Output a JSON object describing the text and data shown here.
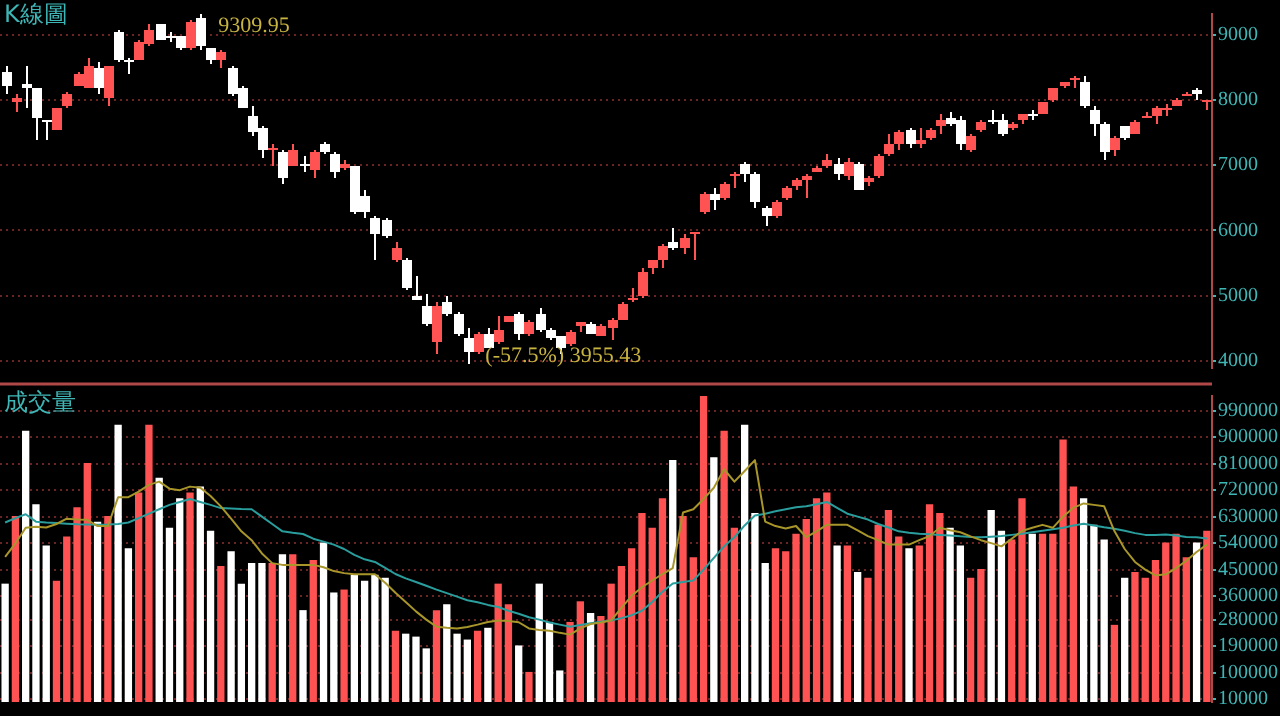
{
  "chart_data": [
    {
      "type": "candlestick",
      "title": "K線圖",
      "categories": [
        null,
        null,
        null,
        null,
        null,
        null,
        null,
        null,
        null,
        null,
        null,
        null,
        null,
        null,
        null,
        null,
        null,
        null,
        null,
        null,
        null,
        null,
        null,
        null,
        null,
        null,
        null,
        null,
        null,
        null,
        null,
        null,
        null,
        null,
        null,
        null,
        null,
        null,
        null,
        null,
        null,
        null,
        null,
        null,
        null,
        null,
        null,
        null,
        null,
        null,
        null,
        null,
        null,
        null,
        null,
        null,
        null,
        null,
        null,
        null,
        null,
        null,
        null,
        null,
        null,
        null,
        null,
        null,
        null,
        null,
        null,
        null,
        null,
        null,
        null,
        null,
        null,
        null,
        null,
        null,
        null,
        null,
        null,
        null,
        null,
        null,
        null,
        null,
        null,
        null,
        null,
        null,
        null,
        null,
        null,
        null,
        null,
        null,
        null,
        null,
        null,
        null,
        null,
        null,
        null,
        null,
        null,
        null,
        null,
        null,
        null,
        null,
        null,
        null,
        null,
        null,
        null,
        null
      ],
      "ohlc": [
        [
          8430,
          8525,
          8097,
          8202
        ],
        [
          7955,
          8097,
          7812,
          8021
        ],
        [
          8249,
          8525,
          7888,
          8173
        ],
        [
          8173,
          8192,
          7384,
          7727
        ],
        [
          7679,
          7698,
          7384,
          7660
        ],
        [
          7556,
          7888,
          7527,
          7869
        ],
        [
          7907,
          8126,
          7888,
          8097
        ],
        [
          8221,
          8439,
          8202,
          8411
        ],
        [
          8192,
          8648,
          8173,
          8515
        ],
        [
          8477,
          8572,
          8107,
          8173
        ],
        [
          8031,
          8534,
          7907,
          8515
        ],
        [
          9047,
          9066,
          8572,
          8601
        ],
        [
          8610,
          8648,
          8411,
          8591
        ],
        [
          8629,
          8933,
          8610,
          8905
        ],
        [
          8867,
          9161,
          8838,
          9076
        ],
        [
          9152,
          9171,
          8914,
          8933
        ],
        [
          8971,
          9047,
          8886,
          8952
        ],
        [
          8971,
          8990,
          8772,
          8791
        ],
        [
          8810,
          9218,
          8772,
          9199
        ],
        [
          9256,
          9309.95,
          8780,
          8819
        ],
        [
          8791,
          8810,
          8553,
          8610
        ],
        [
          8629,
          8762,
          8506,
          8743
        ],
        [
          8506,
          8525,
          8059,
          8097
        ],
        [
          8192,
          8221,
          7869,
          7888
        ],
        [
          7765,
          7907,
          7461,
          7508
        ],
        [
          7584,
          7603,
          7100,
          7223
        ],
        [
          7223,
          7318,
          6976,
          7261
        ],
        [
          7204,
          7242,
          6701,
          6796
        ],
        [
          6986,
          7337,
          6976,
          7223
        ],
        [
          7024,
          7147,
          6890,
          6995
        ],
        [
          6938,
          7223,
          6796,
          7204
        ],
        [
          7318,
          7365,
          7185,
          7204
        ],
        [
          7175,
          7204,
          6815,
          6890
        ],
        [
          6957,
          7080,
          6938,
          7033
        ],
        [
          6976,
          6995,
          6254,
          6292
        ],
        [
          6539,
          6634,
          6178,
          6292
        ],
        [
          6178,
          6207,
          5532,
          5960
        ],
        [
          6150,
          6178,
          5893,
          5912
        ],
        [
          5532,
          5817,
          5513,
          5722
        ],
        [
          5551,
          5570,
          5095,
          5114
        ],
        [
          4991,
          5304,
          4924,
          4943
        ],
        [
          4829,
          5038,
          4544,
          4563
        ],
        [
          4297,
          4895,
          4107,
          4848
        ],
        [
          4895,
          4991,
          4687,
          4706
        ],
        [
          4706,
          4753,
          4392,
          4421
        ],
        [
          4354,
          4516,
          3955.43,
          4136
        ],
        [
          4136,
          4449,
          4107,
          4421
        ],
        [
          4421,
          4516,
          4183,
          4202
        ],
        [
          4278,
          4677,
          4259,
          4468
        ],
        [
          4601,
          4696,
          4582,
          4677
        ],
        [
          4725,
          4744,
          4326,
          4421
        ],
        [
          4411,
          4611,
          4392,
          4582
        ],
        [
          4706,
          4801,
          4449,
          4468
        ],
        [
          4468,
          4516,
          4326,
          4354
        ],
        [
          4373,
          4392,
          4117,
          4212
        ],
        [
          4259,
          4468,
          4240,
          4449
        ],
        [
          4544,
          4601,
          4449,
          4582
        ],
        [
          4572,
          4591,
          4402,
          4421
        ],
        [
          4392,
          4563,
          4373,
          4534
        ],
        [
          4506,
          4658,
          4326,
          4639
        ],
        [
          4629,
          4905,
          4611,
          4886
        ],
        [
          4924,
          5114,
          4905,
          4962
        ],
        [
          4991,
          5418,
          4972,
          5370
        ],
        [
          5418,
          5560,
          5323,
          5532
        ],
        [
          5560,
          5779,
          5418,
          5750
        ],
        [
          5817,
          6036,
          5703,
          5722
        ],
        [
          5741,
          5940,
          5636,
          5874
        ],
        [
          5931,
          5988,
          5560,
          5969
        ],
        [
          6273,
          6586,
          6254,
          6558
        ],
        [
          6558,
          6653,
          6321,
          6482
        ],
        [
          6492,
          6748,
          6463,
          6710
        ],
        [
          6843,
          6900,
          6653,
          6881
        ],
        [
          7033,
          7062,
          6729,
          6862
        ],
        [
          6881,
          6910,
          6340,
          6444
        ],
        [
          6349,
          6387,
          6083,
          6226
        ],
        [
          6226,
          6463,
          6178,
          6444
        ],
        [
          6501,
          6672,
          6482,
          6653
        ],
        [
          6672,
          6796,
          6606,
          6767
        ],
        [
          6786,
          6862,
          6492,
          6843
        ],
        [
          6910,
          6986,
          6890,
          6957
        ],
        [
          6986,
          7166,
          6966,
          7071
        ],
        [
          7033,
          7100,
          6767,
          6862
        ],
        [
          6843,
          7109,
          6767,
          7052
        ],
        [
          7024,
          7052,
          6615,
          6634
        ],
        [
          6748,
          6824,
          6672,
          6805
        ],
        [
          6824,
          7166,
          6796,
          7138
        ],
        [
          7175,
          7489,
          7147,
          7337
        ],
        [
          7318,
          7555,
          7242,
          7508
        ],
        [
          7527,
          7565,
          7270,
          7318
        ],
        [
          7318,
          7575,
          7270,
          7394
        ],
        [
          7413,
          7584,
          7394,
          7556
        ],
        [
          7603,
          7793,
          7480,
          7698
        ],
        [
          7717,
          7812,
          7603,
          7632
        ],
        [
          7679,
          7745,
          7242,
          7318
        ],
        [
          7223,
          7480,
          7204,
          7451
        ],
        [
          7537,
          7679,
          7518,
          7651
        ],
        [
          7689,
          7860,
          7632,
          7670
        ],
        [
          7679,
          7793,
          7461,
          7489
        ],
        [
          7565,
          7651,
          7546,
          7632
        ],
        [
          7679,
          7793,
          7622,
          7774
        ],
        [
          7784,
          7841,
          7698,
          7765
        ],
        [
          7793,
          7983,
          7774,
          7964
        ],
        [
          8002,
          8192,
          7983,
          8173
        ],
        [
          8221,
          8287,
          8192,
          8268
        ],
        [
          8297,
          8363,
          8192,
          8344
        ],
        [
          8287,
          8373,
          7888,
          7907
        ],
        [
          7841,
          7917,
          7461,
          7622
        ],
        [
          7641,
          7660,
          7071,
          7204
        ],
        [
          7223,
          7461,
          7147,
          7432
        ],
        [
          7594,
          7603,
          7385,
          7413
        ],
        [
          7489,
          7679,
          7470,
          7660
        ],
        [
          7736,
          7812,
          7717,
          7764
        ],
        [
          7745,
          7907,
          7632,
          7888
        ],
        [
          7869,
          7926,
          7764,
          7888
        ],
        [
          7917,
          8031,
          7898,
          8012
        ],
        [
          8069,
          8126,
          8050,
          8097
        ],
        [
          8154,
          8183,
          8012,
          8097
        ],
        [
          7983,
          8012,
          7841,
          8002
        ]
      ],
      "colors": [
        "#ffffff",
        "#ff5252",
        "#ffffff",
        "#ffffff",
        "#ffffff",
        "#ff5252",
        "#ff5252",
        "#ff5252",
        "#ff5252",
        "#ffffff",
        "#ff5252",
        "#ffffff",
        "#ffffff",
        "#ff5252",
        "#ff5252",
        "#ffffff",
        "#ffffff",
        "#ffffff",
        "#ff5252",
        "#ffffff",
        "#ffffff",
        "#ff5252",
        "#ffffff",
        "#ffffff",
        "#ffffff",
        "#ffffff",
        "#ff5252",
        "#ffffff",
        "#ff5252",
        "#ffffff",
        "#ff5252",
        "#ffffff",
        "#ffffff",
        "#ff5252",
        "#ffffff",
        "#ffffff",
        "#ffffff",
        "#ffffff",
        "#ff5252",
        "#ffffff",
        "#ffffff",
        "#ffffff",
        "#ff5252",
        "#ffffff",
        "#ffffff",
        "#ffffff",
        "#ff5252",
        "#ffffff",
        "#ff5252",
        "#ff5252",
        "#ffffff",
        "#ff5252",
        "#ffffff",
        "#ffffff",
        "#ffffff",
        "#ff5252",
        "#ff5252",
        "#ffffff",
        "#ff5252",
        "#ff5252",
        "#ff5252",
        "#ff5252",
        "#ff5252",
        "#ff5252",
        "#ff5252",
        "#ffffff",
        "#ff5252",
        "#ff5252",
        "#ff5252",
        "#ffffff",
        "#ff5252",
        "#ff5252",
        "#ffffff",
        "#ffffff",
        "#ffffff",
        "#ff5252",
        "#ff5252",
        "#ff5252",
        "#ff5252",
        "#ff5252",
        "#ff5252",
        "#ffffff",
        "#ff5252",
        "#ffffff",
        "#ff5252",
        "#ff5252",
        "#ff5252",
        "#ff5252",
        "#ffffff",
        "#ff5252",
        "#ff5252",
        "#ff5252",
        "#ffffff",
        "#ffffff",
        "#ff5252",
        "#ff5252",
        "#ffffff",
        "#ffffff",
        "#ff5252",
        "#ff5252",
        "#ffffff",
        "#ff5252",
        "#ff5252",
        "#ff5252",
        "#ff5252",
        "#ffffff",
        "#ffffff",
        "#ffffff",
        "#ff5252",
        "#ffffff",
        "#ff5252",
        "#ff5252",
        "#ff5252",
        "#ff5252",
        "#ff5252",
        "#ff5252",
        "#ffffff",
        "#ff5252"
      ],
      "ylim": [
        3890,
        9320
      ],
      "yticks": [
        4000,
        5000,
        6000,
        7000,
        8000,
        9000
      ],
      "annotations": [
        "9309.95",
        "(-57.5%) 3955.43"
      ],
      "grid": "y",
      "legend": false,
      "tick_labels": "y"
    },
    {
      "type": "bar",
      "title": "成交量",
      "categories": [
        null,
        null,
        null,
        null,
        null,
        null,
        null,
        null,
        null,
        null,
        null,
        null,
        null,
        null,
        null,
        null,
        null,
        null,
        null,
        null,
        null,
        null,
        null,
        null,
        null,
        null,
        null,
        null,
        null,
        null,
        null,
        null,
        null,
        null,
        null,
        null,
        null,
        null,
        null,
        null,
        null,
        null,
        null,
        null,
        null,
        null,
        null,
        null,
        null,
        null,
        null,
        null,
        null,
        null,
        null,
        null,
        null,
        null,
        null,
        null,
        null,
        null,
        null,
        null,
        null,
        null,
        null,
        null,
        null,
        null,
        null,
        null,
        null,
        null,
        null,
        null,
        null,
        null,
        null,
        null,
        null,
        null,
        null,
        null,
        null,
        null,
        null,
        null,
        null,
        null,
        null,
        null,
        null,
        null,
        null,
        null,
        null,
        null,
        null,
        null,
        null,
        null,
        null,
        null,
        null,
        null,
        null,
        null,
        null,
        null,
        null,
        null,
        null,
        null,
        null,
        null,
        null,
        null
      ],
      "series": [
        {
          "type": "bar",
          "colors": [
            "#ffffff",
            "#ff5252",
            "#ffffff",
            "#ffffff",
            "#ffffff",
            "#ff5252",
            "#ff5252",
            "#ff5252",
            "#ff5252",
            "#ffffff",
            "#ff5252",
            "#ffffff",
            "#ffffff",
            "#ff5252",
            "#ff5252",
            "#ffffff",
            "#ffffff",
            "#ffffff",
            "#ff5252",
            "#ffffff",
            "#ffffff",
            "#ff5252",
            "#ffffff",
            "#ffffff",
            "#ffffff",
            "#ffffff",
            "#ff5252",
            "#ffffff",
            "#ff5252",
            "#ffffff",
            "#ff5252",
            "#ffffff",
            "#ffffff",
            "#ff5252",
            "#ffffff",
            "#ffffff",
            "#ffffff",
            "#ffffff",
            "#ff5252",
            "#ffffff",
            "#ffffff",
            "#ffffff",
            "#ff5252",
            "#ffffff",
            "#ffffff",
            "#ffffff",
            "#ff5252",
            "#ffffff",
            "#ff5252",
            "#ff5252",
            "#ffffff",
            "#ff5252",
            "#ffffff",
            "#ffffff",
            "#ffffff",
            "#ff5252",
            "#ff5252",
            "#ffffff",
            "#ff5252",
            "#ff5252",
            "#ff5252",
            "#ff5252",
            "#ff5252",
            "#ff5252",
            "#ff5252",
            "#ffffff",
            "#ff5252",
            "#ff5252",
            "#ff5252",
            "#ffffff",
            "#ff5252",
            "#ff5252",
            "#ffffff",
            "#ffffff",
            "#ffffff",
            "#ff5252",
            "#ff5252",
            "#ff5252",
            "#ff5252",
            "#ff5252",
            "#ff5252",
            "#ffffff",
            "#ff5252",
            "#ffffff",
            "#ff5252",
            "#ff5252",
            "#ff5252",
            "#ff5252",
            "#ffffff",
            "#ff5252",
            "#ff5252",
            "#ff5252",
            "#ffffff",
            "#ffffff",
            "#ff5252",
            "#ff5252",
            "#ffffff",
            "#ffffff",
            "#ff5252",
            "#ff5252",
            "#ffffff",
            "#ff5252",
            "#ff5252",
            "#ff5252",
            "#ff5252",
            "#ffffff",
            "#ffffff",
            "#ffffff",
            "#ff5252",
            "#ffffff",
            "#ff5252",
            "#ff5252",
            "#ff5252",
            "#ff5252",
            "#ff5252",
            "#ff5252",
            "#ffffff",
            "#ff5252"
          ],
          "values": [
            400000,
            630000,
            920000,
            670000,
            530000,
            410000,
            560000,
            660000,
            810000,
            610000,
            630000,
            940000,
            520000,
            710000,
            940000,
            760000,
            590000,
            690000,
            710000,
            730000,
            580000,
            460000,
            510000,
            400000,
            470000,
            470000,
            470000,
            500000,
            500000,
            310000,
            480000,
            540000,
            370000,
            380000,
            430000,
            410000,
            430000,
            420000,
            240000,
            230000,
            220000,
            180000,
            310000,
            330000,
            230000,
            210000,
            240000,
            250000,
            400000,
            330000,
            190000,
            100000,
            400000,
            270000,
            105000,
            270000,
            340000,
            300000,
            290000,
            400000,
            460000,
            520000,
            640000,
            590000,
            690000,
            820000,
            630000,
            490000,
            1040000,
            830000,
            920000,
            590000,
            940000,
            640000,
            470000,
            520000,
            510000,
            570000,
            620000,
            690000,
            710000,
            530000,
            530000,
            440000,
            420000,
            600000,
            650000,
            560000,
            520000,
            530000,
            670000,
            640000,
            590000,
            530000,
            420000,
            450000,
            650000,
            580000,
            550000,
            690000,
            570000,
            570000,
            570000,
            890000,
            730000,
            690000,
            600000,
            550000,
            260000,
            420000,
            440000,
            420000,
            480000,
            540000,
            570000,
            490000,
            540000,
            580000
          ]
        },
        {
          "type": "line",
          "color": "#a8962a",
          "values": [
            493000,
            539000,
            592000,
            596000,
            593000,
            605000,
            623000,
            620000,
            619000,
            598000,
            598000,
            696000,
            696000,
            715000,
            738000,
            749000,
            725000,
            720000,
            732000,
            728000,
            700000,
            665000,
            623000,
            580000,
            550000,
            505000,
            472000,
            466000,
            466000,
            466000,
            466000,
            458000,
            445000,
            438000,
            434000,
            434000,
            434000,
            405000,
            371000,
            340000,
            308000,
            280000,
            256000,
            252000,
            250000,
            255000,
            263000,
            272000,
            277000,
            275000,
            271000,
            250000,
            245000,
            242000,
            235000,
            229000,
            250000,
            265000,
            270000,
            277000,
            320000,
            361000,
            390000,
            413000,
            435000,
            455000,
            644000,
            655000,
            690000,
            728000,
            791000,
            749000,
            785000,
            822000,
            613000,
            598000,
            590000,
            598000,
            560000,
            580000,
            602000,
            602000,
            602000,
            583000,
            564000,
            550000,
            535000,
            535000,
            535000,
            550000,
            564000,
            592000,
            584000,
            577000,
            563000,
            550000,
            540000,
            529000,
            555000,
            581000,
            592000,
            602000,
            592000,
            630000,
            660000,
            675000,
            670000,
            665000,
            581000,
            520000,
            476000,
            450000,
            430000,
            434000,
            455000,
            480000,
            510000,
            535000
          ]
        },
        {
          "type": "line",
          "color": "#2a9d9d",
          "values": [
            610000,
            625000,
            638000,
            613000,
            610000,
            608000,
            606000,
            604000,
            603000,
            602000,
            603000,
            605000,
            610000,
            625000,
            640000,
            655000,
            670000,
            680000,
            690000,
            680000,
            670000,
            659000,
            658000,
            656000,
            655000,
            630000,
            605000,
            580000,
            575000,
            571000,
            555000,
            545000,
            535000,
            520000,
            500000,
            485000,
            476000,
            456000,
            435000,
            420000,
            408000,
            395000,
            382000,
            370000,
            358000,
            346000,
            339000,
            330000,
            323000,
            310000,
            300000,
            288000,
            280000,
            270000,
            263000,
            256000,
            262000,
            268000,
            273000,
            277000,
            285000,
            295000,
            310000,
            340000,
            375000,
            403000,
            408000,
            413000,
            450000,
            490000,
            529000,
            560000,
            600000,
            634000,
            640000,
            648000,
            655000,
            662000,
            665000,
            672000,
            680000,
            660000,
            640000,
            630000,
            620000,
            605000,
            593000,
            580000,
            575000,
            572000,
            570000,
            568000,
            566000,
            563000,
            561000,
            560000,
            562000,
            564000,
            568000,
            572000,
            577000,
            582000,
            587000,
            592000,
            600000,
            606000,
            600000,
            594000,
            589000,
            582000,
            574000,
            568000,
            568000,
            569000,
            566000,
            561000,
            560000,
            556000
          ]
        }
      ],
      "ylim": [
        0,
        1040000
      ],
      "yticks": [
        990000,
        900000,
        810000,
        720000,
        630000,
        540000,
        450000,
        360000,
        280000,
        190000,
        100000,
        10000
      ],
      "grid": "y",
      "legend": false,
      "tick_labels": "y",
      "marker": "none"
    }
  ]
}
